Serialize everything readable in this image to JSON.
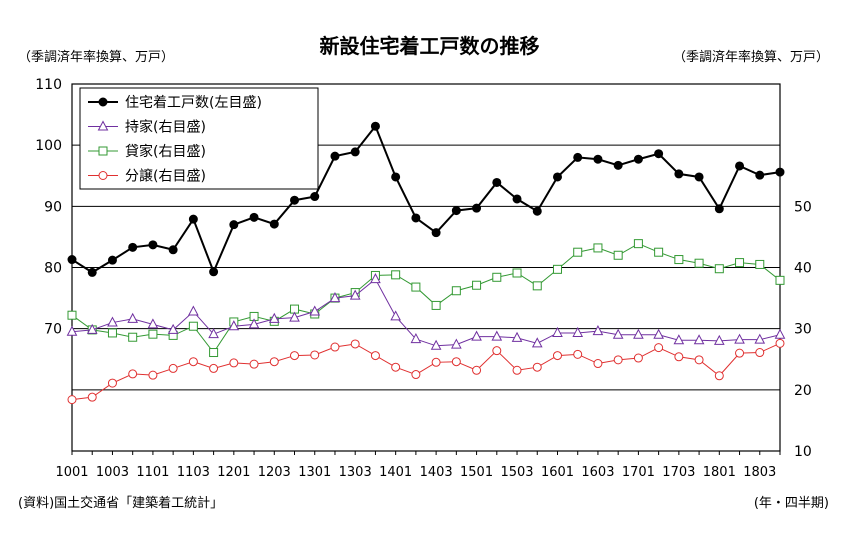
{
  "title": "新設住宅着工戸数の推移",
  "left_axis_unit": "（季調済年率換算、万戸）",
  "right_axis_unit": "（季調済年率換算、万戸）",
  "source": "(資料)国土交通省「建築着工統計」",
  "x_axis_unit": "(年・四半期)",
  "chart_data": {
    "type": "line",
    "title": "新設住宅着工戸数の推移",
    "x": [
      "1001",
      "1002",
      "1003",
      "1004",
      "1101",
      "1102",
      "1103",
      "1104",
      "1201",
      "1202",
      "1203",
      "1204",
      "1301",
      "1302",
      "1303",
      "1304",
      "1401",
      "1402",
      "1403",
      "1404",
      "1501",
      "1502",
      "1503",
      "1504",
      "1601",
      "1602",
      "1603",
      "1604",
      "1701",
      "1702",
      "1703",
      "1704",
      "1801",
      "1802",
      "1803",
      "1804"
    ],
    "x_tick_labels": [
      "1001",
      "1003",
      "1101",
      "1103",
      "1201",
      "1203",
      "1301",
      "1303",
      "1401",
      "1403",
      "1501",
      "1503",
      "1601",
      "1603",
      "1701",
      "1703",
      "1801",
      "1803"
    ],
    "y_left": {
      "label": "（季調済年率換算、万戸）",
      "lim": [
        50,
        110
      ],
      "ticks": [
        70,
        80,
        90,
        100,
        110
      ]
    },
    "y_right": {
      "label": "（季調済年率換算、万戸）",
      "lim": [
        10,
        70
      ],
      "ticks": [
        10,
        20,
        30,
        40,
        50
      ]
    },
    "grid": true,
    "legend_position": "top-left",
    "series": [
      {
        "name": "住宅着工戸数(左目盛)",
        "axis": "left",
        "marker": "filled-circle",
        "color": "#000000",
        "values": [
          81.3,
          79.2,
          81.2,
          83.3,
          83.7,
          82.9,
          87.9,
          79.3,
          87.0,
          88.2,
          87.1,
          91.0,
          91.6,
          98.2,
          98.9,
          103.1,
          94.8,
          88.1,
          85.7,
          89.3,
          89.7,
          93.9,
          91.2,
          89.2,
          94.8,
          98.0,
          97.7,
          96.7,
          97.7,
          98.6,
          95.3,
          94.8,
          89.6,
          96.6,
          95.1,
          95.6
        ]
      },
      {
        "name": "持家(右目盛)",
        "axis": "right",
        "marker": "open-triangle",
        "color": "#7030A0",
        "values": [
          29.5,
          29.8,
          31.0,
          31.6,
          30.7,
          29.8,
          32.8,
          29.1,
          30.4,
          30.7,
          31.6,
          31.8,
          32.8,
          35.0,
          35.4,
          38.1,
          32.0,
          28.3,
          27.2,
          27.4,
          28.7,
          28.7,
          28.5,
          27.6,
          29.3,
          29.3,
          29.6,
          29.0,
          29.0,
          29.0,
          28.1,
          28.1,
          28.0,
          28.2,
          28.2,
          29.0
        ]
      },
      {
        "name": "貸家(右目盛)",
        "axis": "right",
        "marker": "open-square",
        "color": "#339933",
        "values": [
          32.2,
          29.8,
          29.3,
          28.6,
          29.1,
          28.9,
          30.4,
          26.1,
          31.1,
          32.0,
          31.2,
          33.2,
          32.4,
          35.0,
          35.9,
          38.7,
          38.8,
          36.8,
          33.8,
          36.2,
          37.1,
          38.4,
          39.1,
          37.0,
          39.7,
          42.5,
          43.2,
          42.0,
          43.9,
          42.5,
          41.3,
          40.7,
          39.8,
          40.8,
          40.5,
          37.9
        ]
      },
      {
        "name": "分譲(右目盛)",
        "axis": "right",
        "marker": "open-circle",
        "color": "#E03030",
        "values": [
          18.4,
          18.8,
          21.1,
          22.6,
          22.4,
          23.5,
          24.6,
          23.5,
          24.4,
          24.2,
          24.6,
          25.6,
          25.7,
          27.0,
          27.5,
          25.6,
          23.7,
          22.5,
          24.5,
          24.6,
          23.2,
          26.4,
          23.2,
          23.7,
          25.6,
          25.8,
          24.3,
          24.9,
          25.2,
          26.9,
          25.4,
          24.9,
          22.3,
          26.0,
          26.1,
          27.6
        ]
      }
    ]
  }
}
